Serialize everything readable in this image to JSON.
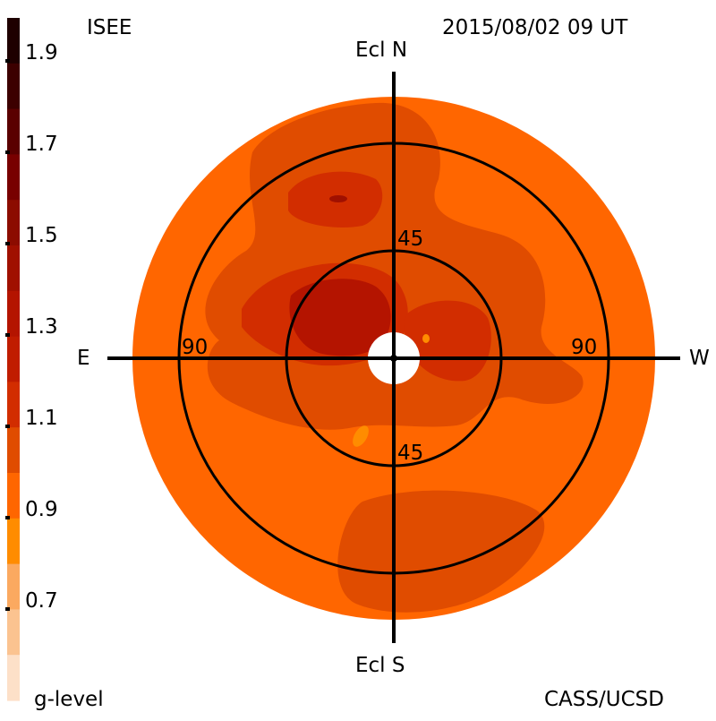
{
  "header": {
    "source": "ISEE",
    "timestamp": "2015/08/02 09 UT"
  },
  "footer": {
    "legend_title": "g-level",
    "credit": "CASS/UCSD"
  },
  "directions": {
    "north": "Ecl N",
    "south": "Ecl S",
    "east": "E",
    "west": "W"
  },
  "ring_labels": {
    "inner_top": "45",
    "inner_bottom": "45",
    "outer_left": "90",
    "outer_right": "90"
  },
  "colorbar": {
    "tick_labels": [
      "1.9",
      "1.7",
      "1.5",
      "1.3",
      "1.1",
      "0.9",
      "0.7"
    ],
    "bands_top_to_bottom": [
      "#1e0000",
      "#3c0000",
      "#5a0000",
      "#780000",
      "#8c0c00",
      "#a01000",
      "#b41400",
      "#c01c00",
      "#d22d00",
      "#e04c00",
      "#ff6600",
      "#ff8c00",
      "#fba960",
      "#fbc390",
      "#fde0c8"
    ]
  },
  "map_colors": {
    "base": "#ff6600",
    "level_1_0": "#e04c00",
    "level_1_1": "#d22d00",
    "level_1_2": "#b41400",
    "level_1_3": "#a01000",
    "light": "#ff8c00",
    "occulter": "#ffffff",
    "lines": "#000000"
  }
}
